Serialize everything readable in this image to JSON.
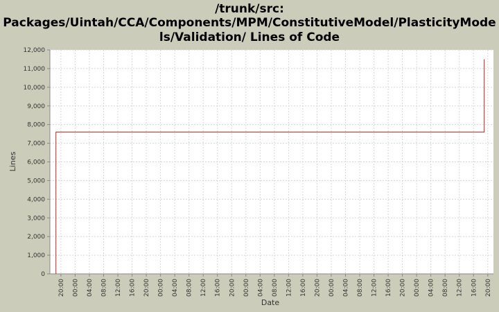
{
  "chart_data": {
    "type": "line",
    "title": [
      "/trunk/src:",
      "Packages/Uintah/CCA/Components/MPM/ConstitutiveModel/PlasticityMode",
      "ls/Validation/ Lines of Code"
    ],
    "x_label": "Date",
    "y_label": "Lines",
    "series": [
      {
        "name": "Lines",
        "color": "#b22222",
        "x": [
          18.6,
          18.6,
          139.0,
          139.0
        ],
        "values": [
          0,
          7600,
          7600,
          11500
        ]
      }
    ],
    "xlim": [
      16.9,
      141.6
    ],
    "xticks": [
      {
        "value": 20,
        "label": "20:00"
      },
      {
        "value": 24,
        "label": "00:00"
      },
      {
        "value": 28,
        "label": "04:00"
      },
      {
        "value": 32,
        "label": "08:00"
      },
      {
        "value": 36,
        "label": "12:00"
      },
      {
        "value": 40,
        "label": "16:00"
      },
      {
        "value": 44,
        "label": "20:00"
      },
      {
        "value": 48,
        "label": "00:00"
      },
      {
        "value": 52,
        "label": "04:00"
      },
      {
        "value": 56,
        "label": "08:00"
      },
      {
        "value": 60,
        "label": "12:00"
      },
      {
        "value": 64,
        "label": "16:00"
      },
      {
        "value": 68,
        "label": "20:00"
      },
      {
        "value": 72,
        "label": "00:00"
      },
      {
        "value": 76,
        "label": "04:00"
      },
      {
        "value": 80,
        "label": "08:00"
      },
      {
        "value": 84,
        "label": "12:00"
      },
      {
        "value": 88,
        "label": "16:00"
      },
      {
        "value": 92,
        "label": "20:00"
      },
      {
        "value": 96,
        "label": "00:00"
      },
      {
        "value": 100,
        "label": "04:00"
      },
      {
        "value": 104,
        "label": "08:00"
      },
      {
        "value": 108,
        "label": "12:00"
      },
      {
        "value": 112,
        "label": "16:00"
      },
      {
        "value": 116,
        "label": "20:00"
      },
      {
        "value": 120,
        "label": "00:00"
      },
      {
        "value": 124,
        "label": "04:00"
      },
      {
        "value": 128,
        "label": "08:00"
      },
      {
        "value": 132,
        "label": "12:00"
      },
      {
        "value": 136,
        "label": "16:00"
      },
      {
        "value": 140,
        "label": "20:00"
      }
    ],
    "ylim": [
      0,
      12000
    ],
    "yticks": [
      0,
      {
        "value": 1000,
        "label": "1,000"
      },
      {
        "value": 2000,
        "label": "2,000"
      },
      {
        "value": 3000,
        "label": "3,000"
      },
      {
        "value": 4000,
        "label": "4,000"
      },
      {
        "value": 5000,
        "label": "5,000"
      },
      {
        "value": 6000,
        "label": "6,000"
      },
      {
        "value": 7000,
        "label": "7,000"
      },
      {
        "value": 8000,
        "label": "8,000"
      },
      {
        "value": 9000,
        "label": "9,000"
      },
      {
        "value": 10000,
        "label": "10,000"
      },
      {
        "value": 11000,
        "label": "11,000"
      },
      {
        "value": 12000,
        "label": "12,000"
      }
    ],
    "grid": true
  }
}
